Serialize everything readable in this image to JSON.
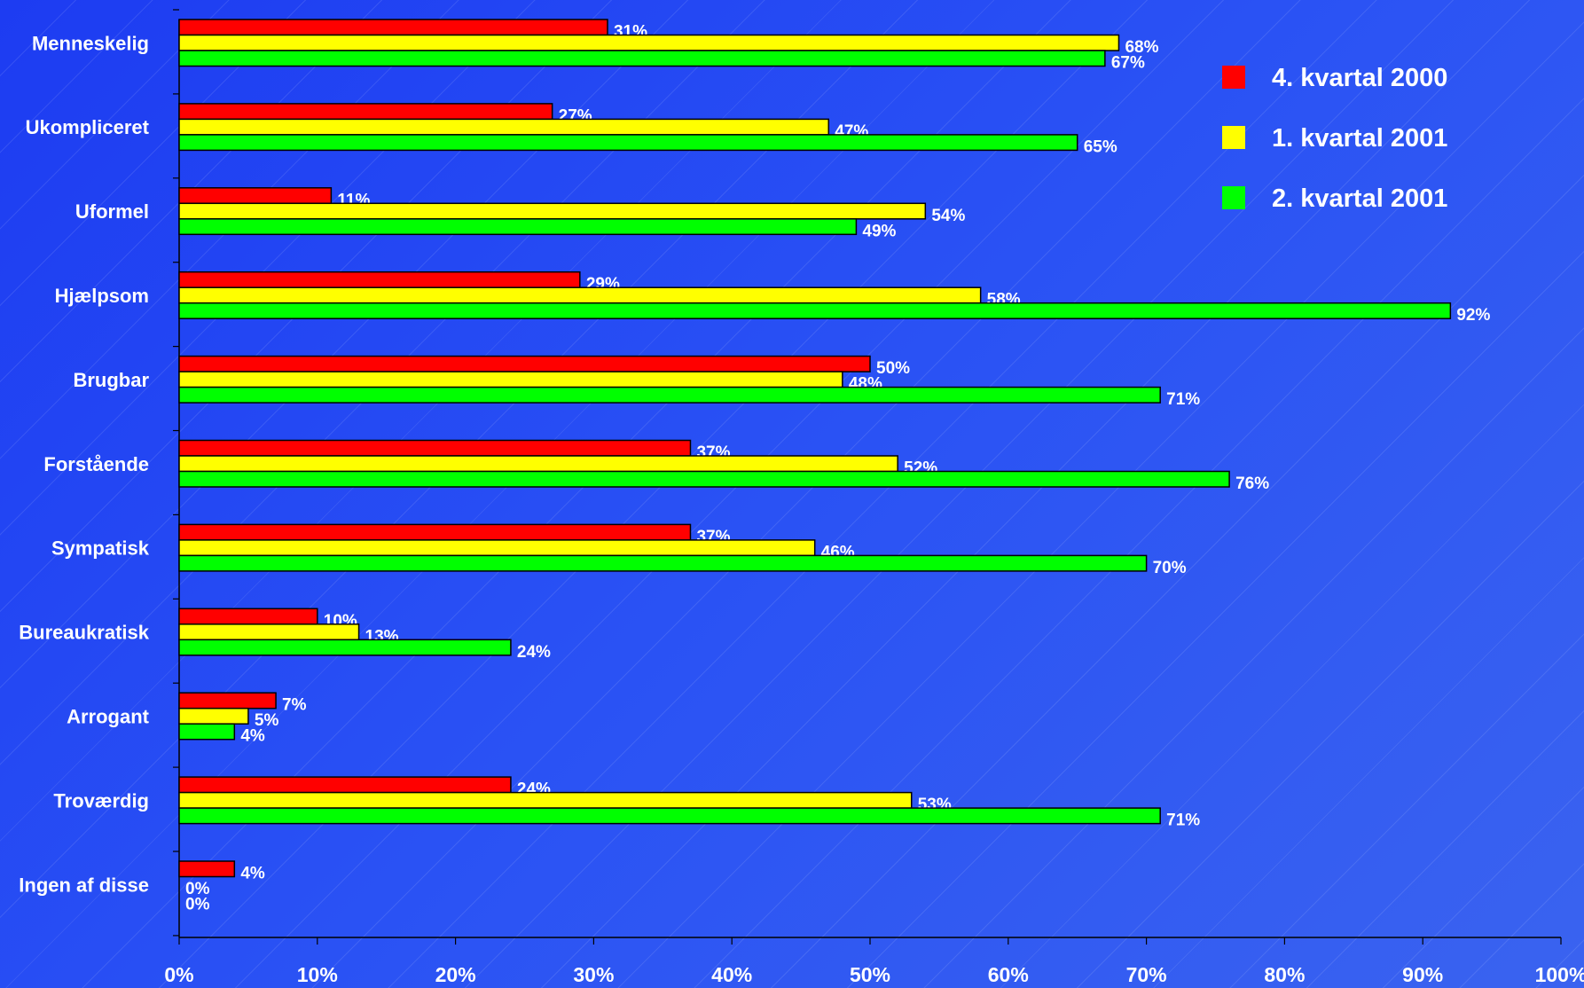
{
  "chart_data": {
    "type": "bar",
    "orientation": "horizontal",
    "categories": [
      "Menneskelig",
      "Ukompliceret",
      "Uformel",
      "Hjælpsom",
      "Brugbar",
      "Forstående",
      "Sympatisk",
      "Bureaukratisk",
      "Arrogant",
      "Troværdig",
      "Ingen af disse"
    ],
    "series": [
      {
        "name": "4. kvartal 2000",
        "color": "#ff0000",
        "values": [
          31,
          27,
          11,
          29,
          50,
          37,
          37,
          10,
          7,
          24,
          4
        ],
        "labels": [
          "31%",
          "27%",
          "11%",
          "29%",
          "50%",
          "37%",
          "37%",
          "10%",
          "7%",
          "24%",
          "4%"
        ]
      },
      {
        "name": "1. kvartal 2001",
        "color": "#ffff00",
        "values": [
          68,
          47,
          54,
          58,
          48,
          52,
          46,
          13,
          5,
          53,
          0
        ],
        "labels": [
          "68%",
          "47%",
          "54%",
          "58%",
          "48%",
          "52%",
          "46%",
          "13%",
          "5%",
          "53%",
          "0%"
        ]
      },
      {
        "name": "2. kvartal 2001",
        "color": "#00ff00",
        "values": [
          67,
          65,
          49,
          92,
          71,
          76,
          70,
          24,
          4,
          71,
          0
        ],
        "labels": [
          "67%",
          "65%",
          "49%",
          "92%",
          "71%",
          "76%",
          "70%",
          "24%",
          "4%",
          "71%",
          "0%"
        ]
      }
    ],
    "x_ticks": [
      "0%",
      "10%",
      "20%",
      "30%",
      "40%",
      "50%",
      "60%",
      "70%",
      "80%",
      "90%",
      "100%"
    ],
    "xlim": [
      0,
      100
    ],
    "legend_position": "top-right",
    "grid": false
  }
}
